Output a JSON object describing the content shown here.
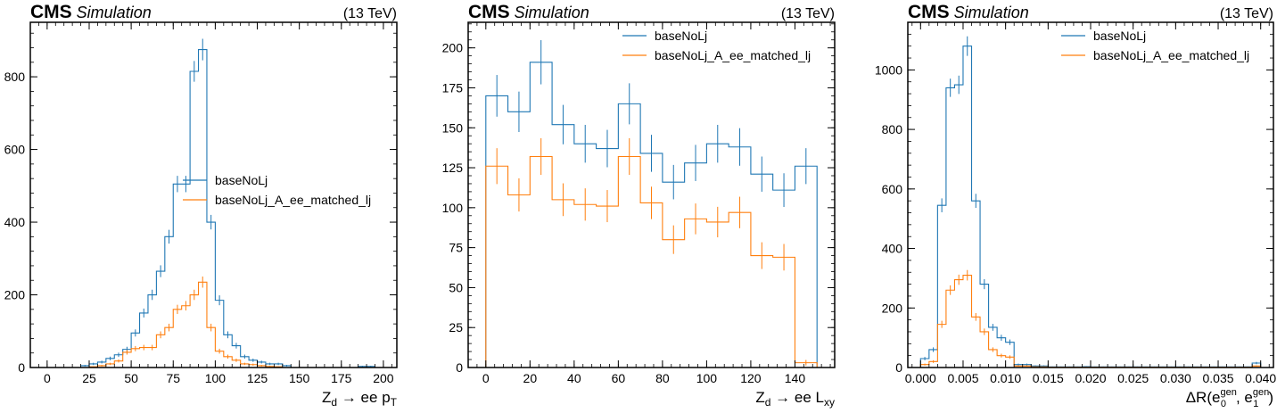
{
  "colors": {
    "series0": "#1f77b4",
    "series1": "#ff7f0e",
    "text": "#000000"
  },
  "chart_data": [
    {
      "type": "histogram",
      "header": {
        "experiment": "CMS",
        "label": "Simulation",
        "energy": "(13 TeV)"
      },
      "xlabel": "Z_d → ee p_T",
      "xlabel_parts": {
        "main": "Z",
        "sub1": "d",
        "mid": " → ee p",
        "sub2": "T"
      },
      "ylabel": "",
      "xlim": [
        -10,
        208
      ],
      "ylim": [
        0,
        950
      ],
      "xticks": [
        0,
        25,
        50,
        75,
        100,
        125,
        150,
        175,
        200
      ],
      "xtick_labels": [
        "0",
        "25",
        "50",
        "75",
        "100",
        "125",
        "150",
        "175",
        "200"
      ],
      "yticks": [
        0,
        200,
        400,
        600,
        800
      ],
      "ytick_labels": [
        "0",
        "200",
        "400",
        "600",
        "800"
      ],
      "legend_position": "center-right",
      "bin_edges": [
        0,
        5,
        10,
        15,
        20,
        25,
        30,
        35,
        40,
        45,
        50,
        55,
        60,
        65,
        70,
        75,
        80,
        85,
        90,
        95,
        100,
        105,
        110,
        115,
        120,
        125,
        130,
        135,
        140,
        145,
        150,
        155,
        160,
        165,
        170,
        175,
        180,
        185,
        190,
        195,
        200
      ],
      "series": [
        {
          "name": "baseNoLj",
          "color": "#1f77b4",
          "values": [
            0,
            0,
            0,
            0,
            5,
            10,
            15,
            25,
            35,
            50,
            95,
            150,
            200,
            265,
            360,
            505,
            505,
            815,
            875,
            400,
            185,
            90,
            60,
            30,
            20,
            15,
            10,
            10,
            5,
            0,
            0,
            0,
            0,
            0,
            0,
            0,
            0,
            3,
            3,
            0
          ]
        },
        {
          "name": "baseNoLj_A_ee_matched_lj",
          "color": "#ff7f0e",
          "values": [
            0,
            0,
            0,
            0,
            0,
            2,
            5,
            10,
            18,
            42,
            52,
            55,
            55,
            90,
            110,
            160,
            170,
            200,
            235,
            110,
            45,
            30,
            20,
            10,
            8,
            5,
            3,
            2,
            0,
            0,
            0,
            0,
            0,
            0,
            0,
            0,
            0,
            0,
            0,
            0
          ]
        }
      ]
    },
    {
      "type": "histogram",
      "header": {
        "experiment": "CMS",
        "label": "Simulation",
        "energy": "(13 TeV)"
      },
      "xlabel": "Z_d → ee L_xy",
      "xlabel_parts": {
        "main": "Z",
        "sub1": "d",
        "mid": " → ee L",
        "sub2": "xy"
      },
      "ylabel": "",
      "xlim": [
        -8,
        158
      ],
      "ylim": [
        0,
        216
      ],
      "xticks": [
        0,
        20,
        40,
        60,
        80,
        100,
        120,
        140
      ],
      "xtick_labels": [
        "0",
        "20",
        "40",
        "60",
        "80",
        "100",
        "120",
        "140"
      ],
      "yticks": [
        0,
        25,
        50,
        75,
        100,
        125,
        150,
        175,
        200
      ],
      "ytick_labels": [
        "0",
        "25",
        "50",
        "75",
        "100",
        "125",
        "150",
        "175",
        "200"
      ],
      "legend_position": "top-right",
      "bin_edges": [
        0,
        10,
        20,
        30,
        40,
        50,
        60,
        70,
        80,
        90,
        100,
        110,
        120,
        130,
        140,
        150
      ],
      "series": [
        {
          "name": "baseNoLj",
          "color": "#1f77b4",
          "values": [
            170,
            160,
            191,
            152,
            140,
            137,
            165,
            134,
            116,
            128,
            140,
            138,
            121,
            111,
            126
          ]
        },
        {
          "name": "baseNoLj_A_ee_matched_lj",
          "color": "#ff7f0e",
          "values": [
            126,
            108,
            132,
            105,
            102,
            101,
            132,
            103,
            80,
            93,
            91,
            97,
            70,
            69,
            3
          ]
        }
      ]
    },
    {
      "type": "histogram",
      "header": {
        "experiment": "CMS",
        "label": "Simulation",
        "energy": "(13 TeV)"
      },
      "xlabel": "ΔR(e_0^gen, e_1^gen)",
      "xlabel_parts": {
        "main": "ΔR(e",
        "sub1": "0",
        "sup1": "gen",
        "mid": ", e",
        "sub2": "1",
        "sup2": "gen",
        "end": ")"
      },
      "ylabel": "",
      "xlim": [
        -0.0015,
        0.0415
      ],
      "ylim": [
        0,
        1160
      ],
      "xticks": [
        0.0,
        0.005,
        0.01,
        0.015,
        0.02,
        0.025,
        0.03,
        0.035,
        0.04
      ],
      "xtick_labels": [
        "0.000",
        "0.005",
        "0.010",
        "0.015",
        "0.020",
        "0.025",
        "0.030",
        "0.035",
        "0.040"
      ],
      "yticks": [
        0,
        200,
        400,
        600,
        800,
        1000
      ],
      "ytick_labels": [
        "0",
        "200",
        "400",
        "600",
        "800",
        "1000"
      ],
      "legend_position": "top-right",
      "bin_edges": [
        0.0,
        0.001,
        0.002,
        0.003,
        0.004,
        0.005,
        0.006,
        0.007,
        0.008,
        0.009,
        0.01,
        0.011,
        0.012,
        0.013,
        0.014,
        0.015,
        0.016,
        0.017,
        0.018,
        0.019,
        0.02,
        0.021,
        0.022,
        0.023,
        0.024,
        0.025,
        0.026,
        0.027,
        0.028,
        0.029,
        0.03,
        0.031,
        0.032,
        0.033,
        0.034,
        0.035,
        0.036,
        0.037,
        0.038,
        0.039,
        0.04
      ],
      "series": [
        {
          "name": "baseNoLj",
          "color": "#1f77b4",
          "values": [
            30,
            60,
            545,
            940,
            950,
            1080,
            560,
            280,
            135,
            100,
            85,
            10,
            10,
            5,
            5,
            2,
            2,
            2,
            2,
            3,
            2,
            2,
            2,
            2,
            2,
            2,
            2,
            2,
            2,
            2,
            2,
            2,
            2,
            2,
            2,
            2,
            2,
            2,
            2,
            15
          ]
        },
        {
          "name": "baseNoLj_A_ee_matched_lj",
          "color": "#ff7f0e",
          "values": [
            10,
            20,
            145,
            260,
            295,
            310,
            170,
            120,
            60,
            40,
            35,
            5,
            5,
            2,
            2,
            1,
            1,
            1,
            1,
            1,
            1,
            1,
            1,
            1,
            1,
            1,
            1,
            1,
            1,
            1,
            1,
            1,
            1,
            1,
            1,
            1,
            1,
            1,
            1,
            5
          ]
        }
      ]
    }
  ]
}
